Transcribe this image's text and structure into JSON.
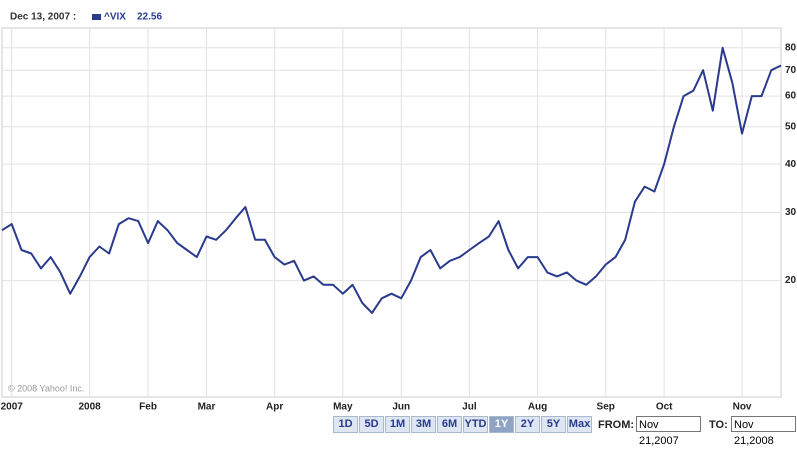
{
  "chart_data": {
    "type": "line",
    "hover_date": "Dec 13, 2007 :",
    "legend_value": 22.56,
    "log_scale": true,
    "grid": true,
    "categories": [
      null,
      "2007",
      null,
      null,
      null,
      null,
      null,
      null,
      null,
      "2008",
      null,
      null,
      null,
      null,
      null,
      "Feb",
      null,
      null,
      null,
      null,
      null,
      "Mar",
      null,
      null,
      null,
      null,
      null,
      null,
      "Apr",
      null,
      null,
      null,
      null,
      null,
      null,
      "May",
      null,
      null,
      null,
      null,
      null,
      "Jun",
      null,
      null,
      null,
      null,
      null,
      null,
      "Jul",
      null,
      null,
      null,
      null,
      null,
      null,
      "Aug",
      null,
      null,
      null,
      null,
      null,
      null,
      "Sep",
      null,
      null,
      null,
      null,
      null,
      "Oct",
      null,
      null,
      null,
      null,
      null,
      null,
      null,
      "Nov",
      null,
      null,
      null,
      null
    ],
    "series": [
      {
        "name": "^VIX",
        "color": "#2a3a8c",
        "values": [
          27,
          28,
          24,
          23.5,
          21.5,
          23,
          21,
          18.5,
          20.5,
          23,
          24.5,
          23.5,
          28,
          29,
          28.5,
          25,
          28.5,
          27,
          25,
          24,
          23,
          26,
          25.5,
          27,
          29,
          31,
          25.5,
          25.5,
          23,
          22,
          22.5,
          20,
          20.5,
          19.5,
          19.5,
          18.5,
          19.5,
          17.5,
          16.5,
          18,
          18.5,
          18,
          20,
          23,
          24,
          21.5,
          22.5,
          23,
          24,
          25,
          26,
          28.5,
          24,
          21.5,
          23,
          23,
          21,
          20.5,
          21,
          20,
          19.5,
          20.5,
          22,
          23,
          25.5,
          32,
          35,
          34,
          40,
          50,
          60,
          62,
          70,
          55,
          80,
          65,
          48,
          60,
          60,
          70,
          72
        ]
      }
    ],
    "ylim": [
      10,
      90
    ],
    "yticks": [
      20,
      30,
      40,
      50,
      60,
      70,
      80
    ]
  },
  "watermark": "© 2008 Yahoo! Inc.",
  "controls": {
    "range_buttons": [
      "1D",
      "5D",
      "1M",
      "3M",
      "6M",
      "YTD",
      "1Y",
      "2Y",
      "5Y",
      "Max"
    ],
    "active": "1Y",
    "from_label": "FROM:",
    "from_value": "Nov 21,2007",
    "to_label": "TO:",
    "to_value": "Nov 21,2008"
  }
}
